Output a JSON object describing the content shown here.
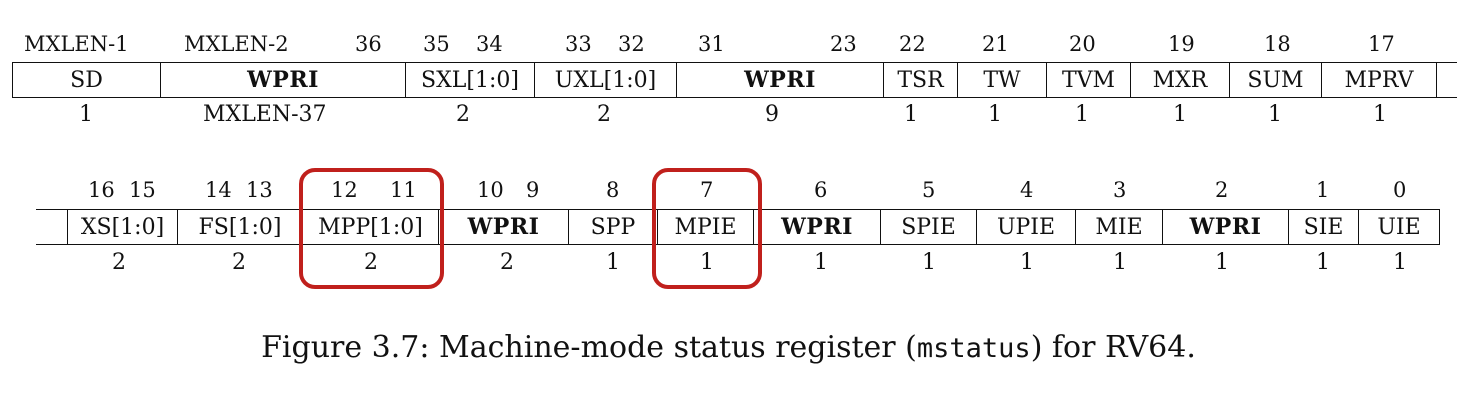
{
  "row1": {
    "bit_labels": [
      "MXLEN-1",
      "MXLEN-2",
      "36",
      "35",
      "34",
      "33",
      "32",
      "31",
      "23",
      "22",
      "21",
      "20",
      "19",
      "18",
      "17"
    ],
    "fields": [
      {
        "name": "SD",
        "width": "1",
        "bold": false
      },
      {
        "name": "WPRI",
        "width": "MXLEN-37",
        "bold": true
      },
      {
        "name": "SXL[1:0]",
        "width": "2",
        "bold": false
      },
      {
        "name": "UXL[1:0]",
        "width": "2",
        "bold": false
      },
      {
        "name": "WPRI",
        "width": "9",
        "bold": true
      },
      {
        "name": "TSR",
        "width": "1",
        "bold": false
      },
      {
        "name": "TW",
        "width": "1",
        "bold": false
      },
      {
        "name": "TVM",
        "width": "1",
        "bold": false
      },
      {
        "name": "MXR",
        "width": "1",
        "bold": false
      },
      {
        "name": "SUM",
        "width": "1",
        "bold": false
      },
      {
        "name": "MPRV",
        "width": "1",
        "bold": false
      }
    ]
  },
  "row2": {
    "bit_labels": [
      "16",
      "15",
      "14",
      "13",
      "12",
      "11",
      "10",
      "9",
      "8",
      "7",
      "6",
      "5",
      "4",
      "3",
      "2",
      "1",
      "0"
    ],
    "fields": [
      {
        "name": "XS[1:0]",
        "width": "2",
        "bold": false
      },
      {
        "name": "FS[1:0]",
        "width": "2",
        "bold": false
      },
      {
        "name": "MPP[1:0]",
        "width": "2",
        "bold": false,
        "highlighted": true
      },
      {
        "name": "WPRI",
        "width": "2",
        "bold": true
      },
      {
        "name": "SPP",
        "width": "1",
        "bold": false
      },
      {
        "name": "MPIE",
        "width": "1",
        "bold": false,
        "highlighted": true
      },
      {
        "name": "WPRI",
        "width": "1",
        "bold": true
      },
      {
        "name": "SPIE",
        "width": "1",
        "bold": false
      },
      {
        "name": "UPIE",
        "width": "1",
        "bold": false
      },
      {
        "name": "MIE",
        "width": "1",
        "bold": false
      },
      {
        "name": "WPRI",
        "width": "1",
        "bold": true
      },
      {
        "name": "SIE",
        "width": "1",
        "bold": false
      },
      {
        "name": "UIE",
        "width": "1",
        "bold": false
      }
    ]
  },
  "caption": {
    "prefix": "Figure 3.7: Machine-mode status register (",
    "code": "mstatus",
    "suffix": ") for RV64."
  },
  "colors": {
    "highlight": "#c0201c",
    "ink": "#111111"
  }
}
